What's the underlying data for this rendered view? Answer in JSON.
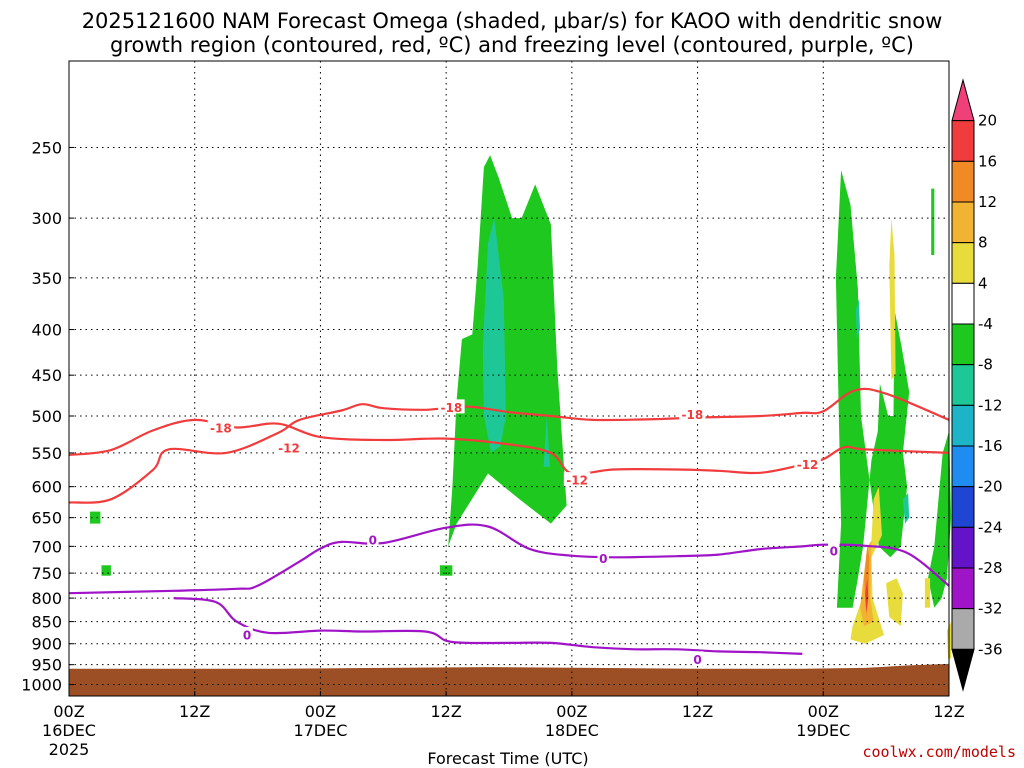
{
  "chart_data": {
    "type": "time-height cross section",
    "title_line1": "2025121600 NAM Forecast Omega (shaded, μbar/s) for KAOO with dendritic snow",
    "title_line2": "growth region (contoured, red, ºC) and freezing level (contoured, purple, ºC)",
    "xlabel": "Forecast Time (UTC)",
    "credit": "coolwx.com/models",
    "x_ticks": [
      {
        "label": "00Z",
        "sub1": "16DEC",
        "sub2": "2025",
        "hour": 0
      },
      {
        "label": "12Z",
        "sub1": "",
        "sub2": "",
        "hour": 12
      },
      {
        "label": "00Z",
        "sub1": "17DEC",
        "sub2": "",
        "hour": 24
      },
      {
        "label": "12Z",
        "sub1": "",
        "sub2": "",
        "hour": 36
      },
      {
        "label": "00Z",
        "sub1": "18DEC",
        "sub2": "",
        "hour": 48
      },
      {
        "label": "12Z",
        "sub1": "",
        "sub2": "",
        "hour": 60
      },
      {
        "label": "00Z",
        "sub1": "19DEC",
        "sub2": "",
        "hour": 72
      },
      {
        "label": "12Z",
        "sub1": "",
        "sub2": "",
        "hour": 84
      }
    ],
    "y_ticks": [
      250,
      300,
      350,
      400,
      450,
      500,
      550,
      600,
      650,
      700,
      750,
      800,
      850,
      900,
      950,
      1000
    ],
    "x_range_hours": [
      0,
      84
    ],
    "y_range_mb": [
      200,
      1030
    ],
    "colorbar": {
      "labels": [
        "20",
        "16",
        "12",
        "8",
        "4",
        "-4",
        "-8",
        "-12",
        "-16",
        "-20",
        "-24",
        "-28",
        "-32",
        "-36"
      ],
      "colors": [
        "#f0407a",
        "#f03c3c",
        "#f08a24",
        "#f0b432",
        "#e8dc3c",
        "#ffffff",
        "#1ec81e",
        "#1ec896",
        "#1eb4c8",
        "#1e8cf0",
        "#1e46d2",
        "#6414c8",
        "#a014c8",
        "#aaaaaa",
        "#000000"
      ]
    },
    "contour_labels": [
      {
        "text": "-18",
        "color": "#f03c3c",
        "hour": 14.5,
        "mb": 516
      },
      {
        "text": "-12",
        "color": "#f03c3c",
        "hour": 21,
        "mb": 543
      },
      {
        "text": "-18",
        "color": "#f03c3c",
        "hour": 36.5,
        "mb": 489
      },
      {
        "text": "-12",
        "color": "#f03c3c",
        "hour": 48.5,
        "mb": 590
      },
      {
        "text": "-18",
        "color": "#f03c3c",
        "hour": 59.5,
        "mb": 498
      },
      {
        "text": "-12",
        "color": "#f03c3c",
        "hour": 70.5,
        "mb": 567
      },
      {
        "text": "0",
        "color": "#a014c8",
        "hour": 29,
        "mb": 689
      },
      {
        "text": "0",
        "color": "#a014c8",
        "hour": 17,
        "mb": 880
      },
      {
        "text": "0",
        "color": "#a014c8",
        "hour": 51,
        "mb": 722
      },
      {
        "text": "0",
        "color": "#a014c8",
        "hour": 60,
        "mb": 937
      },
      {
        "text": "0",
        "color": "#a014c8",
        "hour": 73,
        "mb": 708
      }
    ],
    "series": [
      {
        "name": "-18C dendritic snow growth top",
        "color": "#f03c3c",
        "points": [
          [
            0,
            625
          ],
          [
            4,
            620
          ],
          [
            8,
            575
          ],
          [
            9.5,
            545
          ],
          [
            15,
            550
          ],
          [
            20,
            522
          ],
          [
            22,
            505
          ],
          [
            26,
            493
          ],
          [
            28,
            485
          ],
          [
            30,
            490
          ],
          [
            34,
            492
          ],
          [
            38,
            488
          ],
          [
            42,
            495
          ],
          [
            46,
            500
          ],
          [
            50,
            505
          ],
          [
            56,
            504
          ],
          [
            60,
            502
          ],
          [
            66,
            500
          ],
          [
            70,
            496
          ],
          [
            72,
            494
          ],
          [
            75,
            468
          ],
          [
            78,
            472
          ],
          [
            84,
            505
          ]
        ]
      },
      {
        "name": "-12C dendritic snow growth bottom",
        "color": "#f03c3c",
        "points": [
          [
            0,
            553
          ],
          [
            4,
            546
          ],
          [
            8,
            519
          ],
          [
            12,
            505
          ],
          [
            16,
            515
          ],
          [
            20,
            510
          ],
          [
            24,
            528
          ],
          [
            30,
            532
          ],
          [
            36,
            530
          ],
          [
            42,
            538
          ],
          [
            46,
            550
          ],
          [
            48,
            580
          ],
          [
            52,
            574
          ],
          [
            58,
            574
          ],
          [
            62,
            576
          ],
          [
            66,
            579
          ],
          [
            70,
            567
          ],
          [
            72,
            559
          ],
          [
            74,
            542
          ],
          [
            76,
            545
          ],
          [
            84,
            550
          ]
        ]
      },
      {
        "name": "0C freezing level upper",
        "color": "#a014c8",
        "points": [
          [
            0,
            790
          ],
          [
            10,
            785
          ],
          [
            16,
            781
          ],
          [
            18,
            775
          ],
          [
            22,
            728
          ],
          [
            24,
            704
          ],
          [
            26,
            692
          ],
          [
            30,
            694
          ],
          [
            36,
            667
          ],
          [
            40,
            665
          ],
          [
            44,
            705
          ],
          [
            48,
            717
          ],
          [
            52,
            720
          ],
          [
            58,
            718
          ],
          [
            62,
            715
          ],
          [
            66,
            705
          ],
          [
            70,
            700
          ],
          [
            72,
            697
          ],
          [
            76,
            699
          ],
          [
            80,
            712
          ],
          [
            84,
            775
          ]
        ]
      },
      {
        "name": "0C freezing level lower",
        "color": "#a014c8",
        "points": [
          [
            10,
            800
          ],
          [
            14,
            808
          ],
          [
            16,
            850
          ],
          [
            19,
            875
          ],
          [
            24,
            870
          ],
          [
            28,
            872
          ],
          [
            34,
            872
          ],
          [
            36,
            893
          ],
          [
            38,
            898
          ],
          [
            42,
            898
          ],
          [
            46,
            898
          ],
          [
            50,
            908
          ],
          [
            54,
            913
          ],
          [
            58,
            913
          ],
          [
            62,
            918
          ],
          [
            66,
            920
          ],
          [
            70,
            924
          ]
        ]
      }
    ],
    "omega_regions": [
      {
        "name": "upward motion area 1",
        "level": -8,
        "points": [
          [
            36.2,
            700
          ],
          [
            36.6,
            600
          ],
          [
            37,
            480
          ],
          [
            37.5,
            410
          ],
          [
            38.5,
            405
          ],
          [
            39,
            340
          ],
          [
            39.6,
            263
          ],
          [
            40.2,
            255
          ],
          [
            41,
            270
          ],
          [
            42.3,
            300
          ],
          [
            43.2,
            300
          ],
          [
            44.5,
            275
          ],
          [
            46,
            305
          ],
          [
            46.6,
            440
          ],
          [
            47.5,
            630
          ],
          [
            46,
            660
          ],
          [
            43,
            620
          ],
          [
            40,
            580
          ],
          [
            37,
            660
          ]
        ]
      },
      {
        "name": "upward motion area 2",
        "level": -8,
        "points": [
          [
            73.3,
            820
          ],
          [
            73.7,
            660
          ],
          [
            73.2,
            350
          ],
          [
            73.7,
            265
          ],
          [
            74.6,
            290
          ],
          [
            75.3,
            360
          ],
          [
            75.6,
            500
          ],
          [
            76.5,
            600
          ],
          [
            77.3,
            700
          ],
          [
            78.4,
            720
          ],
          [
            79.4,
            700
          ],
          [
            80,
            600
          ],
          [
            79.6,
            550
          ],
          [
            80.2,
            470
          ],
          [
            79.5,
            420
          ],
          [
            78.8,
            380
          ],
          [
            78.7,
            500
          ],
          [
            78.2,
            500
          ],
          [
            77.4,
            460
          ],
          [
            77.2,
            520
          ],
          [
            76.6,
            560
          ],
          [
            75.8,
            700
          ],
          [
            75.3,
            760
          ],
          [
            74.8,
            820
          ]
        ]
      },
      {
        "name": "upward motion area 3",
        "level": -8,
        "points": [
          [
            82,
            760
          ],
          [
            82.6,
            700
          ],
          [
            83,
            620
          ],
          [
            83.4,
            550
          ],
          [
            84,
            520
          ],
          [
            84.2,
            650
          ],
          [
            83.8,
            760
          ],
          [
            83.3,
            800
          ],
          [
            82.6,
            820
          ]
        ]
      },
      {
        "name": "upward motion area 4",
        "level": -8,
        "points": [
          [
            2,
            640
          ],
          [
            3,
            640
          ],
          [
            3,
            660
          ],
          [
            2,
            660
          ]
        ]
      },
      {
        "name": "upward motion area 5",
        "level": -8,
        "points": [
          [
            3.1,
            735
          ],
          [
            4,
            735
          ],
          [
            4,
            755
          ],
          [
            3.1,
            755
          ]
        ]
      },
      {
        "name": "upward motion area 6",
        "level": -8,
        "points": [
          [
            35.4,
            735
          ],
          [
            36.6,
            735
          ],
          [
            36.6,
            755
          ],
          [
            35.4,
            755
          ]
        ]
      },
      {
        "name": "upward motion area 7",
        "level": -8,
        "points": [
          [
            82.3,
            278
          ],
          [
            82.6,
            278
          ],
          [
            82.6,
            330
          ],
          [
            82.3,
            330
          ]
        ]
      },
      {
        "name": "upward motion core 1",
        "level": -12,
        "points": [
          [
            39.5,
            420
          ],
          [
            40,
            320
          ],
          [
            40.6,
            300
          ],
          [
            41.5,
            370
          ],
          [
            41.7,
            500
          ],
          [
            41.2,
            540
          ],
          [
            40.3,
            550
          ],
          [
            39.6,
            500
          ]
        ]
      },
      {
        "name": "upward motion core 2",
        "level": -12,
        "points": [
          [
            45.3,
            570
          ],
          [
            45.6,
            500
          ],
          [
            45.9,
            570
          ]
        ]
      },
      {
        "name": "upward motion core 3",
        "level": -12,
        "points": [
          [
            75.1,
            380
          ],
          [
            75.4,
            370
          ],
          [
            75.5,
            400
          ],
          [
            75.2,
            410
          ]
        ]
      },
      {
        "name": "upward motion core 4",
        "level": -12,
        "points": [
          [
            79.6,
            620
          ],
          [
            80.1,
            610
          ],
          [
            80.2,
            650
          ],
          [
            79.8,
            660
          ]
        ]
      },
      {
        "name": "downward motion area 1",
        "level": 4,
        "points": [
          [
            74.6,
            890
          ],
          [
            74.8,
            860
          ],
          [
            76.4,
            760
          ],
          [
            76.8,
            620
          ],
          [
            77.3,
            600
          ],
          [
            77.6,
            680
          ],
          [
            76.6,
            720
          ],
          [
            76.7,
            800
          ],
          [
            77.8,
            880
          ],
          [
            76,
            900
          ]
        ]
      },
      {
        "name": "downward motion area 2",
        "level": 4,
        "points": [
          [
            78.3,
            340
          ],
          [
            78.5,
            300
          ],
          [
            78.8,
            330
          ],
          [
            78.9,
            450
          ],
          [
            78.5,
            455
          ]
        ]
      },
      {
        "name": "downward motion area 3",
        "level": 4,
        "points": [
          [
            78,
            770
          ],
          [
            79,
            760
          ],
          [
            79.6,
            790
          ],
          [
            79.4,
            860
          ],
          [
            78.3,
            840
          ]
        ]
      },
      {
        "name": "downward motion area 4",
        "level": 4,
        "points": [
          [
            81.7,
            760
          ],
          [
            82.2,
            760
          ],
          [
            82.2,
            820
          ],
          [
            81.7,
            820
          ]
        ]
      },
      {
        "name": "downward motion area 5",
        "level": 4,
        "points": [
          [
            83.8,
            870
          ],
          [
            84.2,
            850
          ],
          [
            84.2,
            935
          ],
          [
            83.9,
            935
          ]
        ]
      },
      {
        "name": "downward motion core 1",
        "level": 8,
        "points": [
          [
            75.5,
            820
          ],
          [
            76.2,
            700
          ],
          [
            76.6,
            690
          ],
          [
            76.5,
            800
          ],
          [
            76.8,
            850
          ],
          [
            75.9,
            860
          ]
        ]
      },
      {
        "name": "downward motion core 2",
        "level": 12,
        "points": [
          [
            75.9,
            760
          ],
          [
            76.2,
            700
          ],
          [
            76.4,
            720
          ],
          [
            76.3,
            800
          ],
          [
            76.1,
            840
          ]
        ]
      },
      {
        "name": "downward motion peak",
        "level": 16,
        "points": [
          [
            76,
            790
          ],
          [
            76.2,
            760
          ],
          [
            76.3,
            800
          ],
          [
            76.1,
            830
          ]
        ]
      }
    ],
    "terrain_surface": [
      [
        0,
        960
      ],
      [
        10,
        960
      ],
      [
        20,
        960
      ],
      [
        30,
        958
      ],
      [
        40,
        956
      ],
      [
        50,
        958
      ],
      [
        60,
        960
      ],
      [
        70,
        960
      ],
      [
        76,
        958
      ],
      [
        80,
        952
      ],
      [
        84,
        948
      ]
    ]
  }
}
